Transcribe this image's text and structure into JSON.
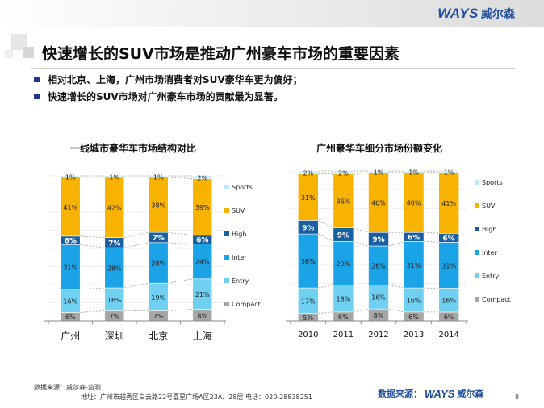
{
  "header": {
    "logo_text": "WAYS",
    "logo_cn": "威尔森"
  },
  "title": "快速增长的SUV市场是推动广州豪车市场的重要因素",
  "bullets": [
    "相对北京、上海，广州市场消费者对SUV豪华车更为偏好；",
    "快速增长的SUV市场对广州豪车市场的贡献最为显著。"
  ],
  "colors": {
    "Compact": "#a6a6a6",
    "Entry": "#6fd0f2",
    "Inter": "#1aa3e6",
    "High": "#1a5fa0",
    "SUV": "#f7b300",
    "Sports": "#bfe9f8"
  },
  "chart_data": [
    {
      "type": "bar",
      "stacked": true,
      "title": "一线城市豪华车市场结构对比",
      "categories": [
        "广州",
        "深圳",
        "北京",
        "上海"
      ],
      "series": [
        {
          "name": "Compact",
          "values": [
            6,
            7,
            7,
            8
          ]
        },
        {
          "name": "Entry",
          "values": [
            16,
            16,
            19,
            21
          ]
        },
        {
          "name": "Inter",
          "values": [
            31,
            28,
            28,
            24
          ]
        },
        {
          "name": "High",
          "values": [
            6,
            7,
            7,
            6
          ]
        },
        {
          "name": "SUV",
          "values": [
            41,
            42,
            38,
            39
          ]
        },
        {
          "name": "Sports",
          "values": [
            1,
            1,
            1,
            2
          ]
        }
      ],
      "value_suffix": "%",
      "ylim": [
        0,
        100
      ],
      "legend": [
        "Sports",
        "SUV",
        "High",
        "Inter",
        "Entry",
        "Compact"
      ],
      "legend_position": "right"
    },
    {
      "type": "bar",
      "stacked": true,
      "title": "广州豪华车细分市场份额变化",
      "categories": [
        "2010",
        "2011",
        "2012",
        "2013",
        "2014"
      ],
      "series": [
        {
          "name": "Compact",
          "values": [
            5,
            6,
            8,
            6,
            6
          ]
        },
        {
          "name": "Entry",
          "values": [
            17,
            18,
            16,
            16,
            16
          ]
        },
        {
          "name": "Inter",
          "values": [
            36,
            29,
            26,
            31,
            31
          ]
        },
        {
          "name": "High",
          "values": [
            9,
            9,
            9,
            6,
            6
          ]
        },
        {
          "name": "SUV",
          "values": [
            31,
            36,
            40,
            40,
            41
          ]
        },
        {
          "name": "Sports",
          "values": [
            2,
            2,
            1,
            1,
            1
          ]
        }
      ],
      "value_suffix": "%",
      "ylim": [
        0,
        100
      ],
      "legend": [
        "Sports",
        "SUV",
        "High",
        "Inter",
        "Entry",
        "Compact"
      ],
      "legend_position": "right"
    }
  ],
  "footer": {
    "source": "数据来源：威尔森-监测",
    "address": "地址：广州市越秀区白云路22号嘉星广场A区23A、28层    电话：020-28838251",
    "brand_label": "数据来源：",
    "brand_logo": "WAYS",
    "brand_cn": "威尔森",
    "page": "8"
  }
}
